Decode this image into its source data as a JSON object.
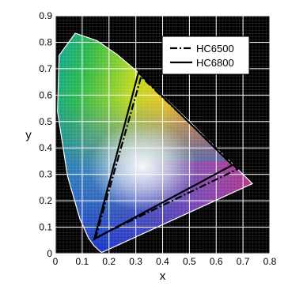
{
  "chart_data": {
    "type": "line",
    "title": "",
    "xlabel": "x",
    "ylabel": "y",
    "xlim": [
      0,
      0.8
    ],
    "ylim": [
      0,
      0.9
    ],
    "x_ticks": [
      "0",
      "0.1",
      "0.2",
      "0.3",
      "0.4",
      "0.5",
      "0.6",
      "0.7",
      "0.8"
    ],
    "y_ticks": [
      "0",
      "0.1",
      "0.2",
      "0.3",
      "0.4",
      "0.5",
      "0.6",
      "0.7",
      "0.8",
      "0.9"
    ],
    "grid": true,
    "legend_position": "top-right",
    "background_color": "#000000",
    "spectral_locus": [
      [
        0.175,
        0.005
      ],
      [
        0.174,
        0.005
      ],
      [
        0.172,
        0.005
      ],
      [
        0.166,
        0.009
      ],
      [
        0.144,
        0.03
      ],
      [
        0.124,
        0.058
      ],
      [
        0.091,
        0.133
      ],
      [
        0.045,
        0.295
      ],
      [
        0.008,
        0.538
      ],
      [
        0.014,
        0.75
      ],
      [
        0.074,
        0.834
      ],
      [
        0.155,
        0.806
      ],
      [
        0.23,
        0.754
      ],
      [
        0.302,
        0.692
      ],
      [
        0.373,
        0.624
      ],
      [
        0.444,
        0.555
      ],
      [
        0.513,
        0.487
      ],
      [
        0.575,
        0.424
      ],
      [
        0.627,
        0.373
      ],
      [
        0.666,
        0.334
      ],
      [
        0.692,
        0.308
      ],
      [
        0.735,
        0.265
      ]
    ],
    "series": [
      {
        "name": "HC6500",
        "line_style": "dash-dot",
        "color": "#000000",
        "points": [
          [
            0.68,
            0.32
          ],
          [
            0.32,
            0.67
          ],
          [
            0.15,
            0.06
          ]
        ]
      },
      {
        "name": "HC6800",
        "line_style": "solid",
        "color": "#000000",
        "points": [
          [
            0.66,
            0.335
          ],
          [
            0.31,
            0.685
          ],
          [
            0.145,
            0.055
          ]
        ]
      }
    ]
  }
}
